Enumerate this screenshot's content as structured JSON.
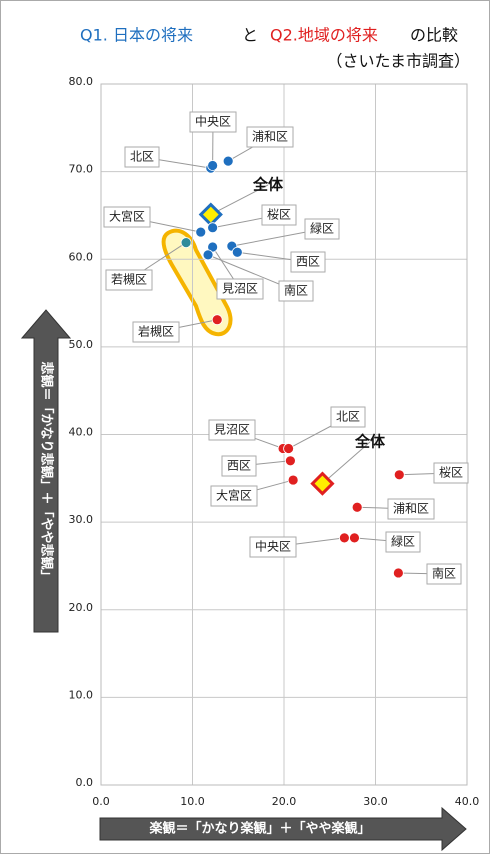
{
  "chart_data": {
    "type": "scatter",
    "title": [
      "Q1. 日本の将来",
      "と",
      "Q2.地域の将来",
      "の比較"
    ],
    "subtitle": "（さいたま市調査）",
    "x_label": "楽観＝「かなり楽観」＋「やや楽観」",
    "y_label": "悲観＝「かなり悲観」＋「やや悲観」",
    "xlim": [
      0,
      40
    ],
    "ylim": [
      0,
      80
    ],
    "xticks": [
      {
        "value": 0,
        "label": "0.0"
      },
      {
        "value": 10,
        "label": "10.0"
      },
      {
        "value": 20,
        "label": "20.0"
      },
      {
        "value": 30,
        "label": "30.0"
      },
      {
        "value": 40,
        "label": "40.0"
      }
    ],
    "yticks": [
      {
        "value": 0,
        "label": "0.0"
      },
      {
        "value": 10,
        "label": "10.0"
      },
      {
        "value": 20,
        "label": "20.0"
      },
      {
        "value": 30,
        "label": "30.0"
      },
      {
        "value": 40,
        "label": "40.0"
      },
      {
        "value": 50,
        "label": "50.0"
      },
      {
        "value": 60,
        "label": "60.0"
      },
      {
        "value": 70,
        "label": "70.0"
      },
      {
        "value": 80,
        "label": "80.0"
      }
    ],
    "grid": true,
    "series": [
      {
        "name": "Q1. 日本の将来",
        "color": "#1f6fbf",
        "labels": [
          "北区",
          "中央区",
          "浦和区",
          "全体",
          "桜区",
          "大宮区",
          "緑区",
          "西区",
          "若槻区",
          "見沼区",
          "南区",
          "岩槻区"
        ],
        "x": [
          12.0,
          12.2,
          13.9,
          12.0,
          12.2,
          10.9,
          14.3,
          14.9,
          9.3,
          12.2,
          11.7,
          12.7
        ],
        "values": [
          70.4,
          70.7,
          71.2,
          65.1,
          63.6,
          63.1,
          61.5,
          60.8,
          61.9,
          61.4,
          60.5,
          53.1
        ],
        "colors": [
          "#1f6fbf",
          "#1f6fbf",
          "#1f6fbf",
          "#ffee00",
          "#1f6fbf",
          "#1f6fbf",
          "#1f6fbf",
          "#1f6fbf",
          "#2e8b9a",
          "#1f6fbf",
          "#1f6fbf",
          "#e02020"
        ],
        "markers": [
          "circle",
          "circle",
          "circle",
          "diamond",
          "circle",
          "circle",
          "circle",
          "circle",
          "circle",
          "circle",
          "circle",
          "circle"
        ]
      },
      {
        "name": "Q2.地域の将来",
        "color": "#e02020",
        "labels": [
          "見沼区",
          "北区",
          "西区",
          "大宮区",
          "全体",
          "桜区",
          "浦和区",
          "中央区",
          "緑区",
          "南区"
        ],
        "x": [
          19.9,
          20.5,
          20.7,
          21.0,
          24.2,
          32.6,
          28.0,
          26.6,
          27.7,
          32.5
        ],
        "values": [
          38.4,
          38.4,
          37.0,
          34.8,
          34.4,
          35.4,
          31.7,
          28.2,
          28.2,
          24.2
        ],
        "colors": [
          "#e02020",
          "#e02020",
          "#e02020",
          "#e02020",
          "#ffee00",
          "#e02020",
          "#e02020",
          "#e02020",
          "#e02020",
          "#e02020"
        ],
        "markers": [
          "circle",
          "circle",
          "circle",
          "circle",
          "diamond",
          "circle",
          "circle",
          "circle",
          "circle",
          "circle"
        ]
      }
    ]
  }
}
